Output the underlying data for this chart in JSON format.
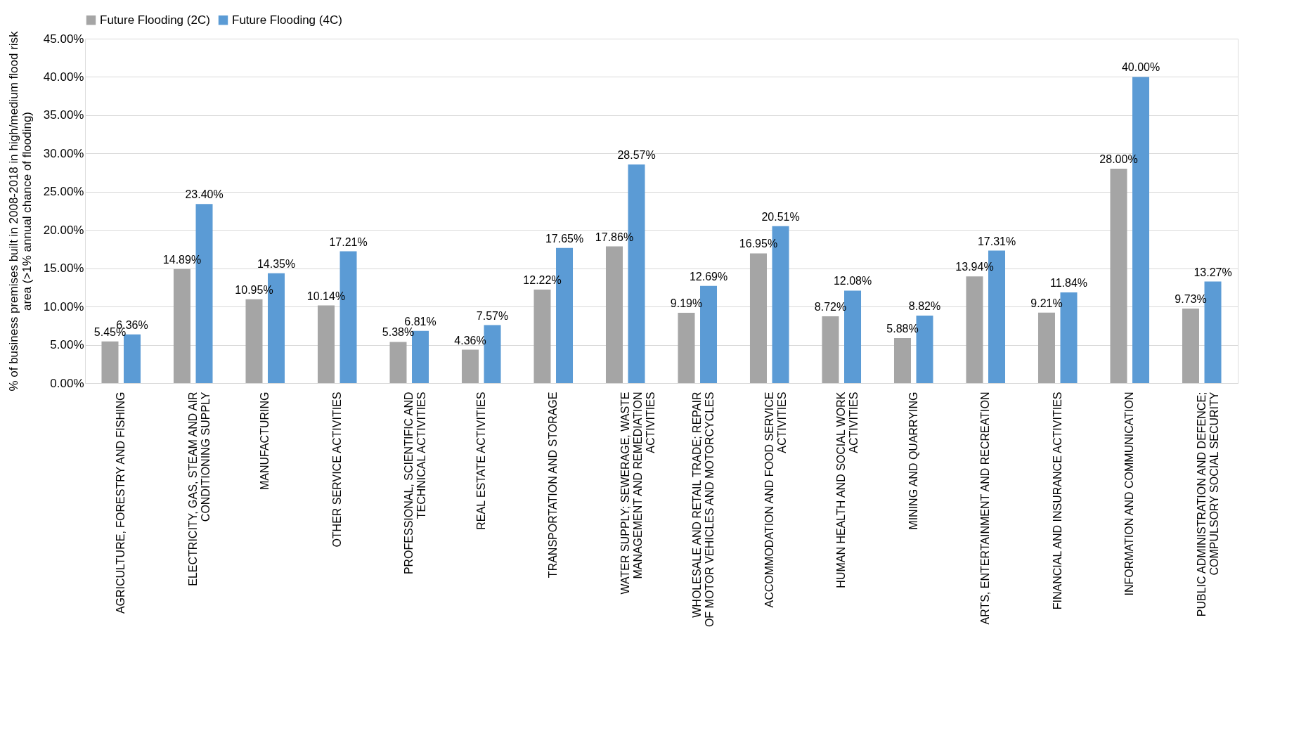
{
  "chart_data": {
    "type": "bar",
    "ylabel": "% of  business premises built in 2008-2018 in high/medium flood risk area (>1% annual chance of flooding)",
    "categories": [
      "AGRICULTURE, FORESTRY AND FISHING",
      "ELECTRICITY, GAS, STEAM AND AIR CONDITIONING SUPPLY",
      "MANUFACTURING",
      "OTHER SERVICE ACTIVITIES",
      "PROFESSIONAL, SCIENTIFIC AND TECHNICAL ACTIVITIES",
      "REAL ESTATE ACTIVITIES",
      "TRANSPORTATION AND STORAGE",
      "WATER SUPPLY; SEWERAGE, WASTE MANAGEMENT AND REMEDIATION ACTIVITIES",
      "WHOLESALE AND RETAIL TRADE; REPAIR OF MOTOR VEHICLES AND MOTORCYCLES",
      "ACCOMMODATION AND FOOD SERVICE ACTIVITIES",
      "HUMAN HEALTH AND SOCIAL WORK ACTIVITIES",
      "MINING AND QUARRYING",
      "ARTS, ENTERTAINMENT AND RECREATION",
      "FINANCIAL AND INSURANCE ACTIVITIES",
      "INFORMATION AND COMMUNICATION",
      "PUBLIC ADMINISTRATION AND DEFENCE; COMPULSORY SOCIAL SECURITY"
    ],
    "series": [
      {
        "name": "Future Flooding (2C)",
        "color": "#a5a5a5",
        "values": [
          5.45,
          14.89,
          10.95,
          10.14,
          5.38,
          4.36,
          12.22,
          17.86,
          9.19,
          16.95,
          8.72,
          5.88,
          13.94,
          9.21,
          28.0,
          9.73
        ],
        "value_labels": [
          "5.45%",
          "14.89%",
          "10.95%",
          "10.14%",
          "5.38%",
          "4.36%",
          "12.22%",
          "17.86%",
          "9.19%",
          "16.95%",
          "8.72%",
          "5.88%",
          "13.94%",
          "9.21%",
          "28.00%",
          "9.73%"
        ]
      },
      {
        "name": "Future Flooding (4C)",
        "color": "#5b9bd5",
        "values": [
          6.36,
          23.4,
          14.35,
          17.21,
          6.81,
          7.57,
          17.65,
          28.57,
          12.69,
          20.51,
          12.08,
          8.82,
          17.31,
          11.84,
          40.0,
          13.27
        ],
        "value_labels": [
          "6.36%",
          "23.40%",
          "14.35%",
          "17.21%",
          "6.81%",
          "7.57%",
          "17.65%",
          "28.57%",
          "12.69%",
          "20.51%",
          "12.08%",
          "8.82%",
          "17.31%",
          "11.84%",
          "40.00%",
          "13.27%"
        ]
      }
    ],
    "ylim": [
      0,
      45
    ],
    "yticks": [
      {
        "value": 0,
        "label": "0.00%"
      },
      {
        "value": 5,
        "label": "5.00%"
      },
      {
        "value": 10,
        "label": "10.00%"
      },
      {
        "value": 15,
        "label": "15.00%"
      },
      {
        "value": 20,
        "label": "20.00%"
      },
      {
        "value": 25,
        "label": "25.00%"
      },
      {
        "value": 30,
        "label": "30.00%"
      },
      {
        "value": 35,
        "label": "35.00%"
      },
      {
        "value": 40,
        "label": "40.00%"
      },
      {
        "value": 45,
        "label": "45.00%"
      }
    ],
    "grid": "y",
    "legend": "top"
  }
}
